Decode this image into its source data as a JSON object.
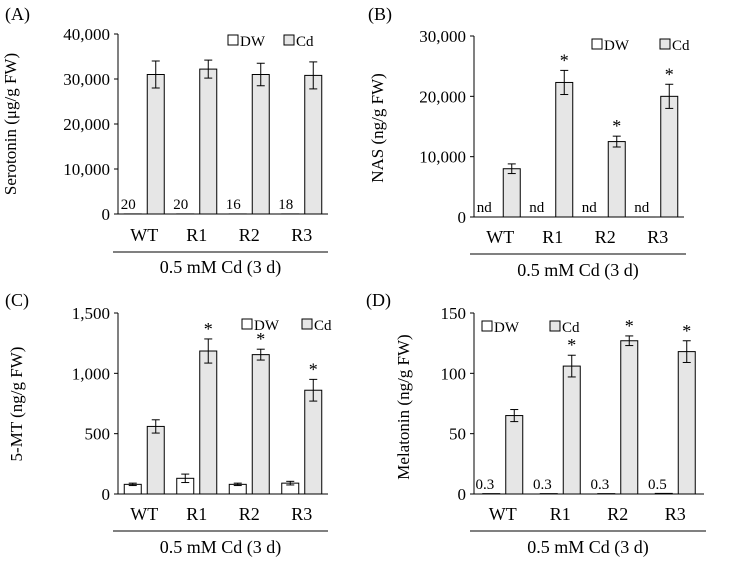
{
  "chart_data": [
    {
      "panel_label": "(A)",
      "type": "bar",
      "categories": [
        "WT",
        "R1",
        "R2",
        "R3"
      ],
      "series": [
        {
          "name": "DW",
          "values": [
            20,
            20,
            16,
            18
          ],
          "errors": [
            0,
            0,
            0,
            0
          ]
        },
        {
          "name": "Cd",
          "values": [
            31000,
            32200,
            31000,
            30800
          ],
          "errors": [
            3000,
            2000,
            2500,
            3000
          ]
        }
      ],
      "annotations": [
        {
          "category": "WT",
          "series": "DW",
          "text": "20"
        },
        {
          "category": "R1",
          "series": "DW",
          "text": "20"
        },
        {
          "category": "R2",
          "series": "DW",
          "text": "16"
        },
        {
          "category": "R3",
          "series": "DW",
          "text": "18"
        }
      ],
      "ylabel": "Serotonin (μg/g FW)",
      "xlabel": "0.5 mM Cd (3 d)",
      "ylim": [
        0,
        40000
      ],
      "yticks": [
        0,
        10000,
        20000,
        30000,
        40000
      ],
      "ytick_labels": [
        "0",
        "10,000",
        "20,000",
        "30,000",
        "40,000"
      ],
      "legend": "top-right"
    },
    {
      "panel_label": "(B)",
      "type": "bar",
      "categories": [
        "WT",
        "R1",
        "R2",
        "R3"
      ],
      "series": [
        {
          "name": "DW",
          "values": [
            0,
            0,
            0,
            0
          ],
          "errors": [
            0,
            0,
            0,
            0
          ]
        },
        {
          "name": "Cd",
          "values": [
            8000,
            22300,
            12500,
            20000
          ],
          "errors": [
            800,
            2000,
            900,
            2000
          ]
        }
      ],
      "annotations": [
        {
          "category": "WT",
          "series": "DW",
          "text": "nd"
        },
        {
          "category": "R1",
          "series": "DW",
          "text": "nd"
        },
        {
          "category": "R2",
          "series": "DW",
          "text": "nd"
        },
        {
          "category": "R3",
          "series": "DW",
          "text": "nd"
        },
        {
          "category": "R1",
          "series": "Cd",
          "text": "*"
        },
        {
          "category": "R2",
          "series": "Cd",
          "text": "*"
        },
        {
          "category": "R3",
          "series": "Cd",
          "text": "*"
        }
      ],
      "ylabel": "NAS (ng/g FW)",
      "xlabel": "0.5 mM Cd (3 d)",
      "ylim": [
        0,
        30000
      ],
      "yticks": [
        0,
        10000,
        20000,
        30000
      ],
      "ytick_labels": [
        "0",
        "10,000",
        "20,000",
        "30,000"
      ],
      "legend": "top-right"
    },
    {
      "panel_label": "(C)",
      "type": "bar",
      "categories": [
        "WT",
        "R1",
        "R2",
        "R3"
      ],
      "series": [
        {
          "name": "DW",
          "values": [
            80,
            130,
            80,
            90
          ],
          "errors": [
            10,
            35,
            10,
            15
          ]
        },
        {
          "name": "Cd",
          "values": [
            560,
            1185,
            1155,
            860
          ],
          "errors": [
            55,
            100,
            45,
            90
          ]
        }
      ],
      "annotations": [
        {
          "category": "R1",
          "series": "Cd",
          "text": "*"
        },
        {
          "category": "R2",
          "series": "Cd",
          "text": "*"
        },
        {
          "category": "R3",
          "series": "Cd",
          "text": "*"
        }
      ],
      "ylabel": "5-MT (ng/g FW)",
      "xlabel": "0.5 mM Cd (3 d)",
      "ylim": [
        0,
        1500
      ],
      "yticks": [
        0,
        500,
        1000,
        1500
      ],
      "ytick_labels": [
        "0",
        "500",
        "1,000",
        "1,500"
      ],
      "legend": "top-right"
    },
    {
      "panel_label": "(D)",
      "type": "bar",
      "categories": [
        "WT",
        "R1",
        "R2",
        "R3"
      ],
      "series": [
        {
          "name": "DW",
          "values": [
            0.3,
            0.3,
            0.3,
            0.5
          ],
          "errors": [
            0,
            0,
            0,
            0
          ]
        },
        {
          "name": "Cd",
          "values": [
            65,
            106,
            127,
            118
          ],
          "errors": [
            5,
            9,
            4,
            9
          ]
        }
      ],
      "annotations": [
        {
          "category": "WT",
          "series": "DW",
          "text": "0.3"
        },
        {
          "category": "R1",
          "series": "DW",
          "text": "0.3"
        },
        {
          "category": "R2",
          "series": "DW",
          "text": "0.3"
        },
        {
          "category": "R3",
          "series": "DW",
          "text": "0.5"
        },
        {
          "category": "R1",
          "series": "Cd",
          "text": "*"
        },
        {
          "category": "R2",
          "series": "Cd",
          "text": "*"
        },
        {
          "category": "R3",
          "series": "Cd",
          "text": "*"
        }
      ],
      "ylabel": "Melatonin (ng/g FW)",
      "xlabel": "0.5 mM Cd (3 d)",
      "ylim": [
        0,
        150
      ],
      "yticks": [
        0,
        50,
        100,
        150
      ],
      "ytick_labels": [
        "0",
        "50",
        "100",
        "150"
      ],
      "legend": "top-left"
    }
  ],
  "colors": {
    "dw_fill": "#ffffff",
    "cd_fill": "#e6e6e6",
    "stroke": "#000000"
  }
}
